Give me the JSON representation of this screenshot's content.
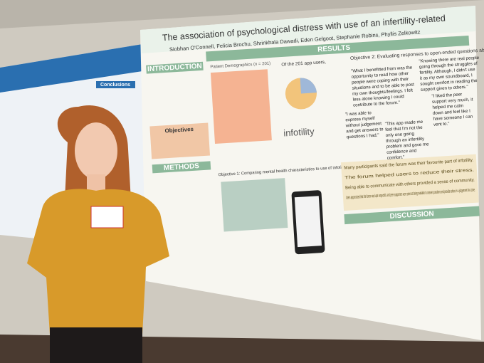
{
  "poster": {
    "title": "The association of psychological distress with use of an infertility-related",
    "authors": "Siobhan O'Connell, Felicia Brochu, Shrinkhala Dawadi, Eden Gelgoot, Stephanie Robins, Phyllis Zelkowitz",
    "sections": {
      "introduction": "INTRODUCTION",
      "results": "RESULTS",
      "objectives": "Objectives",
      "methods": "METHODS",
      "discussion": "DISCUSSION"
    },
    "demographics_title": "Patient Demographics (n = 201)",
    "app_users": "Of the 201 app users,",
    "app_name": "infotility",
    "objective1": "Objective 1: Comparing mental health characteristics to use of infotility forum",
    "objective2": "Objective 2: Evaluating responses to open-ended questions about the infotility forum",
    "quotes": [
      [
        "\"What I benefitted from was the",
        "opportunity to read how other",
        "people were coping with their",
        "situations and to be able to post",
        "my own thoughts/feelings. I felt",
        "less alone knowing I could",
        "contribute to the forum.\""
      ],
      [
        "\"Knowing there are real people",
        "going through the struggles of",
        "fertility. Although, I didn't use",
        "it as my own soundboard, I",
        "sought comfort in reading the",
        "support given to others.\""
      ],
      [
        "\"I was able to",
        "express myself",
        "without judgement",
        "and get answers to",
        "questions I had.\""
      ],
      [
        "\"This app made me",
        "feel that I'm not the",
        "only one going",
        "through an infertility",
        "problem and gave me",
        "confidence and",
        "comfort.\""
      ],
      [
        "\"I liked the peer",
        "support very much, it",
        "helped me calm",
        "down and feel like I",
        "have someone I can",
        "vent to.\""
      ]
    ],
    "bullets": [
      "Many participants said the forum was their favourite part of infotility.",
      "The forum helped users to reduce their stress.",
      "Being able to communicate with others provided a sense of community.",
      "Users appreciated that the forum was kept respectful, and peer supporters were seen as being available to answer questions and provide advice in a judgement free zone."
    ]
  },
  "left_poster": {
    "conclusions": "Conclusions"
  }
}
